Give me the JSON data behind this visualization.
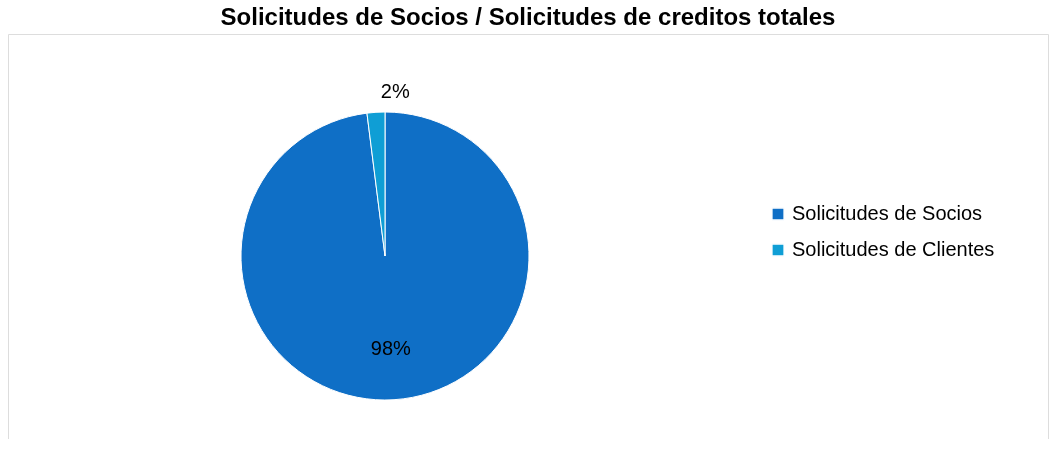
{
  "chart_data": {
    "type": "pie",
    "title": "Solicitudes de Socios / Solicitudes de creditos totales",
    "categories": [
      "Solicitudes de Socios",
      "Solicitudes de Clientes"
    ],
    "values": [
      98,
      2
    ],
    "colors": [
      "#0f6fc6",
      "#0f9ed5"
    ],
    "value_labels": [
      "98%",
      "2%"
    ],
    "legend": "right"
  }
}
